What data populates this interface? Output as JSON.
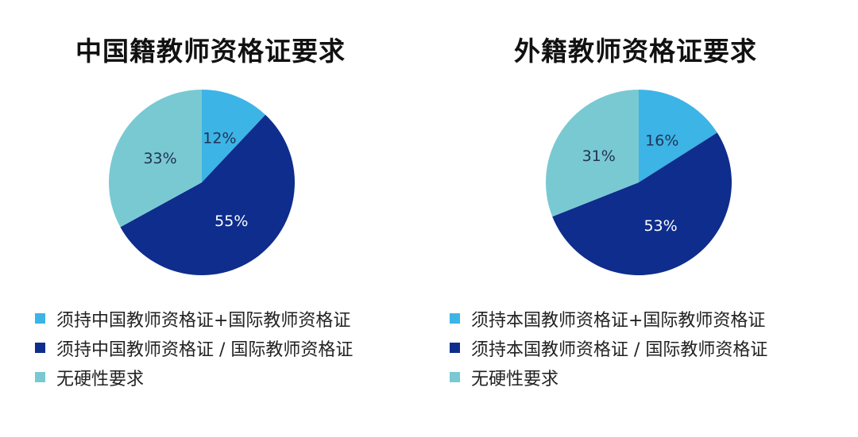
{
  "chart_data": [
    {
      "type": "pie",
      "title": "中国籍教师资格证要求",
      "series": [
        {
          "name": "须持中国教师资格证+国际教师资格证",
          "value": 12,
          "label": "12%",
          "color": "#3cb4e6"
        },
        {
          "name": "须持中国教师资格证 / 国际教师资格证",
          "value": 55,
          "label": "55%",
          "color": "#0e2d8c"
        },
        {
          "name": "无硬性要求",
          "value": 33,
          "label": "33%",
          "color": "#79c9d3"
        }
      ]
    },
    {
      "type": "pie",
      "title": "外籍教师资格证要求",
      "series": [
        {
          "name": "须持本国教师资格证+国际教师资格证",
          "value": 16,
          "label": "16%",
          "color": "#3cb4e6"
        },
        {
          "name": "须持本国教师资格证 / 国际教师资格证",
          "value": 53,
          "label": "53%",
          "color": "#0e2d8c"
        },
        {
          "name": "无硬性要求",
          "value": 31,
          "label": "31%",
          "color": "#79c9d3"
        }
      ]
    }
  ]
}
